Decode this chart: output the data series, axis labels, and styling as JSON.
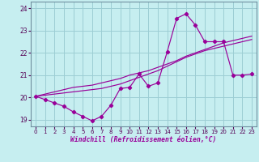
{
  "xlabel": "Windchill (Refroidissement éolien,°C)",
  "background_color": "#c6eef0",
  "grid_color": "#9ccdd4",
  "line_color": "#990099",
  "hours": [
    0,
    1,
    2,
    3,
    4,
    5,
    6,
    7,
    8,
    9,
    10,
    11,
    12,
    13,
    14,
    15,
    16,
    17,
    18,
    19,
    20,
    21,
    22,
    23
  ],
  "main_data": [
    20.05,
    19.9,
    19.75,
    19.6,
    19.35,
    19.15,
    18.95,
    19.15,
    19.65,
    20.4,
    20.45,
    21.05,
    20.5,
    20.65,
    22.05,
    23.55,
    23.75,
    23.25,
    22.5,
    22.5,
    22.5,
    21.0,
    21.0,
    21.05
  ],
  "trend1": [
    20.05,
    20.15,
    20.25,
    20.35,
    20.45,
    20.5,
    20.55,
    20.65,
    20.75,
    20.85,
    21.0,
    21.1,
    21.2,
    21.35,
    21.5,
    21.65,
    21.85,
    22.0,
    22.15,
    22.3,
    22.45,
    22.55,
    22.65,
    22.75
  ],
  "trend2": [
    20.05,
    20.1,
    20.15,
    20.2,
    20.25,
    20.3,
    20.35,
    20.4,
    20.5,
    20.6,
    20.75,
    20.9,
    21.05,
    21.2,
    21.4,
    21.6,
    21.8,
    21.95,
    22.1,
    22.2,
    22.3,
    22.4,
    22.5,
    22.6
  ],
  "ylim": [
    18.7,
    24.3
  ],
  "yticks": [
    19,
    20,
    21,
    22,
    23,
    24
  ],
  "xlim": [
    -0.5,
    23.5
  ]
}
